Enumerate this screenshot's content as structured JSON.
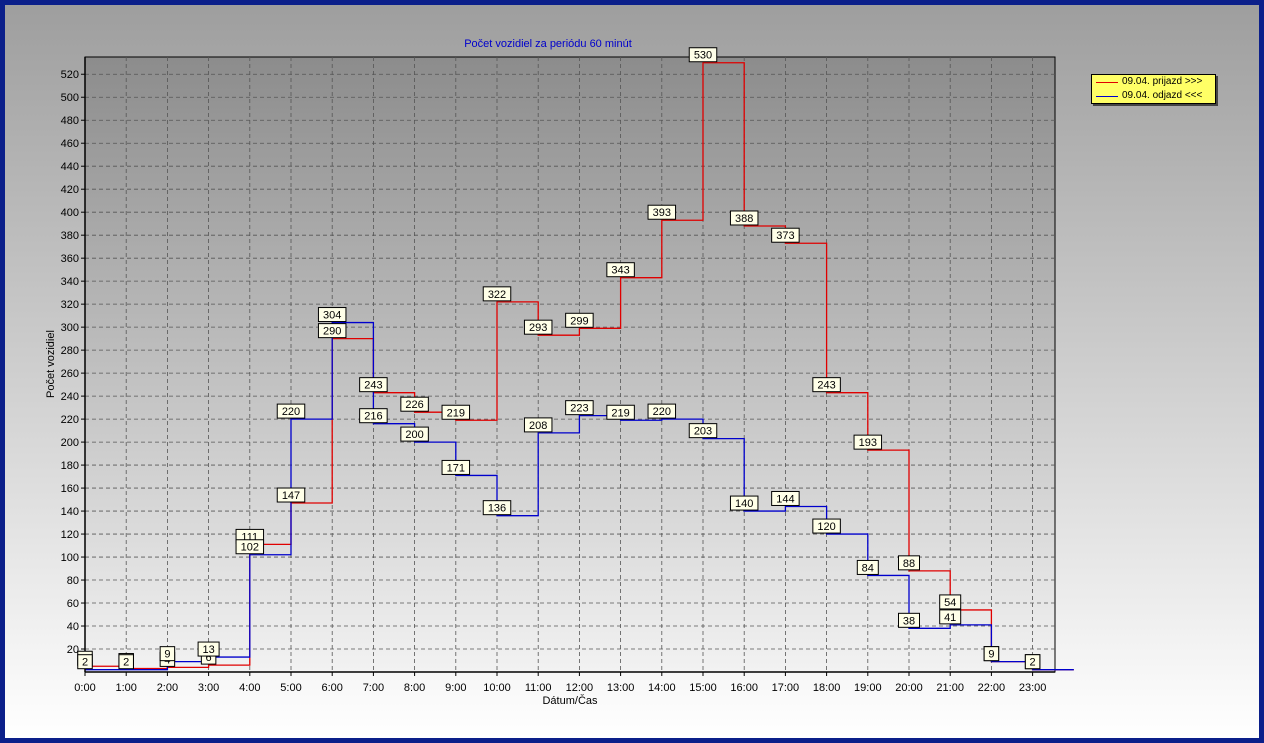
{
  "chart_data": {
    "type": "line",
    "title": "Počet vozidiel za periódu 60 minút",
    "xlabel": "Dátum/Čas",
    "ylabel": "Počet vozidiel",
    "categories": [
      "0:00",
      "1:00",
      "2:00",
      "3:00",
      "4:00",
      "5:00",
      "6:00",
      "7:00",
      "8:00",
      "9:00",
      "10:00",
      "11:00",
      "12:00",
      "13:00",
      "14:00",
      "15:00",
      "16:00",
      "17:00",
      "18:00",
      "19:00",
      "20:00",
      "21:00",
      "22:00",
      "23:00"
    ],
    "y_ticks": [
      "20",
      "40",
      "60",
      "80",
      "100",
      "120",
      "140",
      "160",
      "180",
      "200",
      "220",
      "240",
      "260",
      "280",
      "300",
      "320",
      "340",
      "360",
      "380",
      "400",
      "420",
      "440",
      "460",
      "480",
      "500",
      "520"
    ],
    "ylim": [
      0,
      535
    ],
    "grid": true,
    "legend_position": "top-right",
    "series": [
      {
        "name": "09.04.  prijazd >>>",
        "color": "#e00000",
        "values": [
          5,
          3,
          4,
          6,
          111,
          147,
          290,
          243,
          226,
          219,
          322,
          293,
          299,
          343,
          393,
          530,
          388,
          373,
          243,
          193,
          88,
          54,
          9,
          2
        ]
      },
      {
        "name": "09.04.  odjazd <<<",
        "color": "#0000cc",
        "values": [
          2,
          2,
          9,
          13,
          102,
          220,
          304,
          216,
          200,
          171,
          136,
          208,
          223,
          219,
          220,
          203,
          140,
          144,
          120,
          84,
          38,
          41,
          9,
          2
        ]
      }
    ]
  },
  "colors": {
    "frame": "#0b1f8a",
    "title": "#0000cc",
    "legend_bg": "#ffff66"
  }
}
